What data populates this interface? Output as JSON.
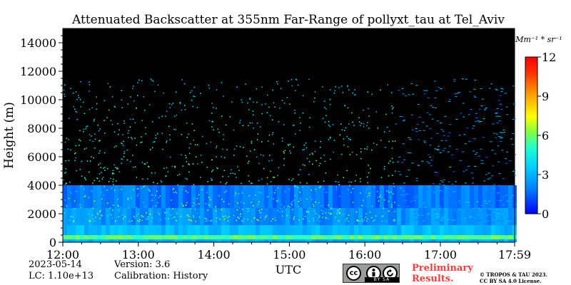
{
  "chart_data": {
    "type": "heatmap",
    "title": "Attenuated Backscatter at 355nm Far-Range of pollyxt_tau at Tel_Aviv",
    "xlabel": "UTC",
    "ylabel": "Height (m)",
    "x_ticks": [
      "12:00",
      "13:00",
      "14:00",
      "15:00",
      "16:00",
      "17:00",
      "17:59"
    ],
    "x_tick_hours": [
      12,
      13,
      14,
      15,
      16,
      17,
      17.983
    ],
    "xlim_hours": [
      12,
      17.983
    ],
    "y_ticks": [
      0,
      2000,
      4000,
      6000,
      8000,
      10000,
      12000,
      14000
    ],
    "ylim": [
      0,
      15000
    ],
    "colorbar": {
      "label": "Mm⁻¹ * sr⁻¹",
      "ticks": [
        0,
        3,
        6,
        9,
        12
      ],
      "range": [
        0,
        12
      ],
      "colormap": "jet"
    },
    "background_color": "#000000"
  },
  "info": {
    "date": "2023-05-14",
    "lc": "LC: 1.10e+13",
    "version": "Version: 3.6",
    "calibration": "Calibration: History"
  },
  "footer": {
    "cc_text": "cc",
    "cc_strip": "BY SA",
    "preliminary_line1": "Preliminary",
    "preliminary_line2": "Results.",
    "copyright_line1": "© TROPOS & TAU 2023.",
    "copyright_line2": "CC BY SA 4.0 License."
  }
}
